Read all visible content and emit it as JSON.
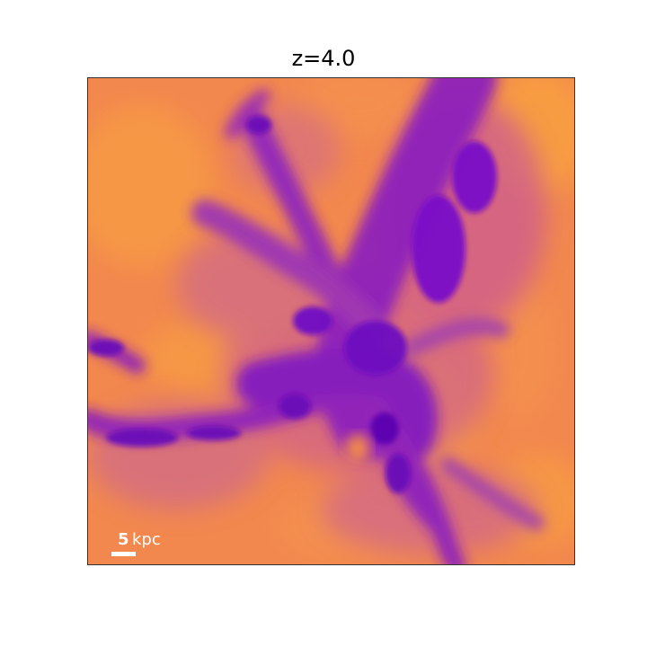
{
  "figure": {
    "title": "z=4.0",
    "colormap": {
      "background": "#f2884e",
      "light": "#f9a340",
      "mid": "#c0509a",
      "dark": "#7a10c8",
      "darkest": "#5c06b0"
    }
  },
  "scale_bar": {
    "value": "5",
    "unit": "kpc",
    "color": "#ffffff"
  }
}
